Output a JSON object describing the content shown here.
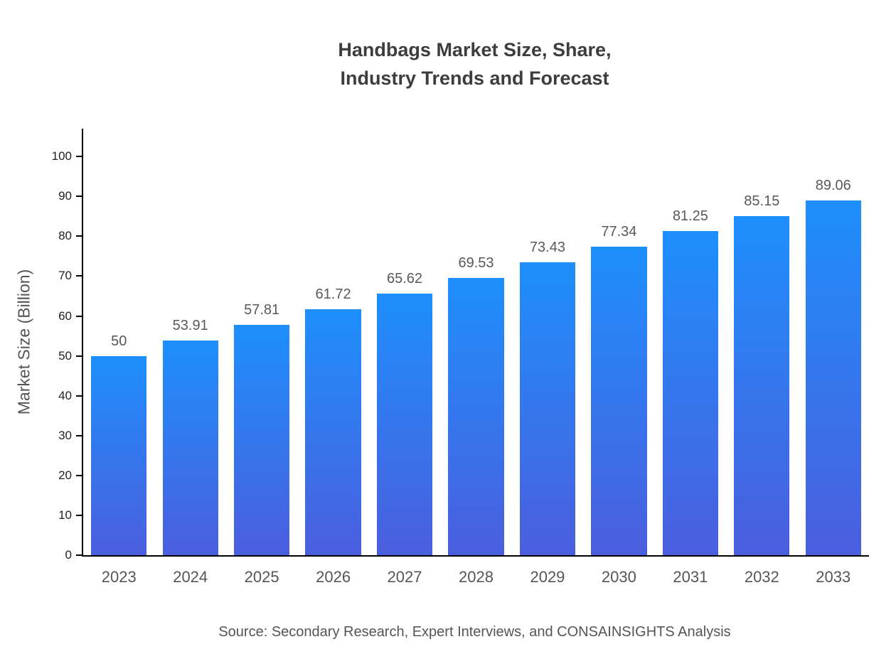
{
  "title": {
    "line1": "Handbags Market Size, Share,",
    "line2": "Industry Trends and Forecast"
  },
  "source": "Source: Secondary Research, Expert Interviews, and CONSAINSIGHTS Analysis",
  "colors": {
    "bar_gradient_top": "#1e8ffd",
    "bar_gradient_bottom": "#4b5ede",
    "axis": "#000000",
    "title_text": "#3d3d3d",
    "value_label_text": "#595959",
    "tick_label_text": "#222222",
    "category_label_text": "#555555"
  },
  "chart_data": {
    "type": "bar",
    "title": "Handbags Market Size, Share, Industry Trends and Forecast",
    "xlabel": "",
    "ylabel": "Market Size (Billion)",
    "categories": [
      "2023",
      "2024",
      "2025",
      "2026",
      "2027",
      "2028",
      "2029",
      "2030",
      "2031",
      "2032",
      "2033"
    ],
    "values": [
      50,
      53.91,
      57.81,
      61.72,
      65.62,
      69.53,
      73.43,
      77.34,
      81.25,
      85.15,
      89.06
    ],
    "value_labels": [
      "50",
      "53.91",
      "57.81",
      "61.72",
      "65.62",
      "69.53",
      "73.43",
      "77.34",
      "81.25",
      "85.15",
      "89.06"
    ],
    "ylim": [
      0,
      107
    ],
    "yticks": [
      0,
      10,
      20,
      30,
      40,
      50,
      60,
      70,
      80,
      90,
      100
    ],
    "grid": false,
    "legend": false,
    "source": "Source: Secondary Research, Expert Interviews, and CONSAINSIGHTS Analysis"
  }
}
